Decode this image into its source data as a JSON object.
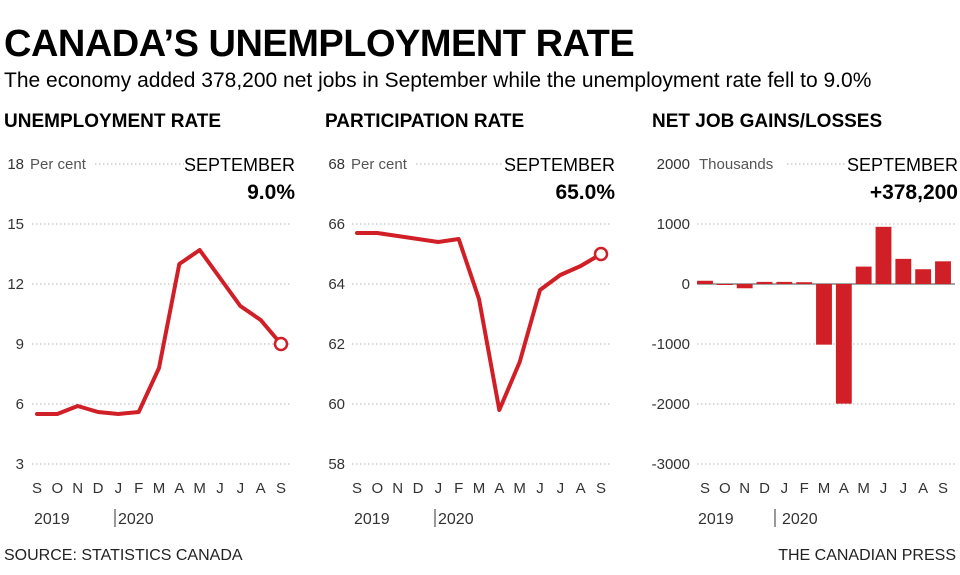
{
  "title": "CANADA’S UNEMPLOYMENT RATE",
  "subtitle": "The economy added 378,200 net jobs in September while the unemployment rate fell to 9.0%",
  "source": "SOURCE: STATISTICS CANADA",
  "credit": "THE CANADIAN PRESS",
  "colors": {
    "series": "#d11f27",
    "grid": "#b3b3b3",
    "text": "#000000"
  },
  "chart_data": [
    {
      "type": "line",
      "title": "UNEMPLOYMENT RATE",
      "unit_label": "Per cent",
      "categories": [
        "S",
        "O",
        "N",
        "D",
        "J",
        "F",
        "M",
        "A",
        "M",
        "J",
        "J",
        "A",
        "S"
      ],
      "year_labels": [
        "2019",
        "2020"
      ],
      "y_ticks": [
        3,
        6,
        9,
        12,
        15,
        18
      ],
      "ylim": [
        3,
        18
      ],
      "grid": true,
      "series": [
        {
          "values": [
            5.5,
            5.5,
            5.9,
            5.6,
            5.5,
            5.6,
            7.8,
            13.0,
            13.7,
            12.3,
            10.9,
            10.2,
            9.0
          ]
        }
      ],
      "annotation": {
        "label": "SEPTEMBER",
        "value": "9.0%"
      }
    },
    {
      "type": "line",
      "title": "PARTICIPATION RATE",
      "unit_label": "Per cent",
      "categories": [
        "S",
        "O",
        "N",
        "D",
        "J",
        "F",
        "M",
        "A",
        "M",
        "J",
        "J",
        "A",
        "S"
      ],
      "year_labels": [
        "2019",
        "2020"
      ],
      "y_ticks": [
        58,
        60,
        62,
        64,
        66,
        68
      ],
      "ylim": [
        58,
        68
      ],
      "grid": true,
      "series": [
        {
          "values": [
            65.7,
            65.7,
            65.6,
            65.5,
            65.4,
            65.5,
            63.5,
            59.8,
            61.4,
            63.8,
            64.3,
            64.6,
            65.0
          ]
        }
      ],
      "annotation": {
        "label": "SEPTEMBER",
        "value": "65.0%"
      }
    },
    {
      "type": "bar",
      "title": "NET JOB GAINS/LOSSES",
      "unit_label": "Thousands",
      "categories": [
        "S",
        "O",
        "N",
        "D",
        "J",
        "F",
        "M",
        "A",
        "M",
        "J",
        "J",
        "A",
        "S"
      ],
      "year_labels": [
        "2019",
        "2020"
      ],
      "y_ticks": [
        -3000,
        -2000,
        -1000,
        0,
        1000,
        2000
      ],
      "ylim": [
        -3000,
        2000
      ],
      "grid": true,
      "series": [
        {
          "values": [
            54,
            -2,
            -71,
            35,
            35,
            30,
            -1011,
            -1994,
            290,
            953,
            419,
            246,
            378
          ]
        }
      ],
      "annotation": {
        "label": "SEPTEMBER",
        "value": "+378,200"
      }
    }
  ]
}
